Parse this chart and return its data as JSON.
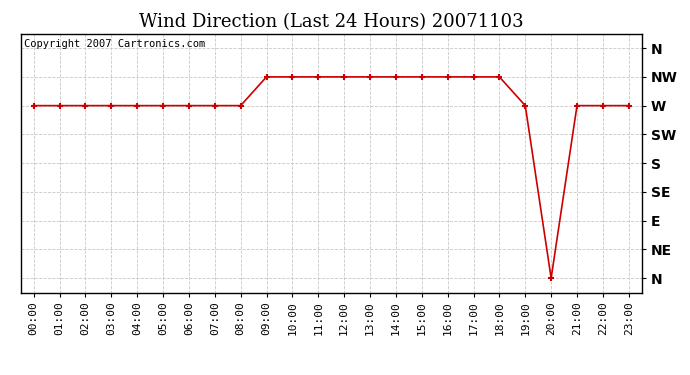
{
  "title": "Wind Direction (Last 24 Hours) 20071103",
  "copyright": "Copyright 2007 Cartronics.com",
  "background_color": "#ffffff",
  "plot_bg_color": "#ffffff",
  "grid_color": "#c8c8c8",
  "line_color": "#cc0000",
  "marker_color": "#cc0000",
  "ytick_labels": [
    "N",
    "NE",
    "E",
    "SE",
    "S",
    "SW",
    "W",
    "NW",
    "N"
  ],
  "ytick_values": [
    0,
    1,
    2,
    3,
    4,
    5,
    6,
    7,
    8
  ],
  "hours": [
    0,
    1,
    2,
    3,
    4,
    5,
    6,
    7,
    8,
    9,
    10,
    11,
    12,
    13,
    14,
    15,
    16,
    17,
    18,
    19,
    20,
    21,
    22,
    23
  ],
  "wind_values": [
    6,
    6,
    6,
    6,
    6,
    6,
    6,
    6,
    6,
    7,
    7,
    7,
    7,
    7,
    7,
    7,
    7,
    7,
    7,
    6,
    0,
    6,
    6,
    6
  ],
  "xlim": [
    -0.5,
    23.5
  ],
  "ylim": [
    -0.5,
    8.5
  ],
  "title_fontsize": 13,
  "label_fontsize": 8,
  "copyright_fontsize": 7.5
}
